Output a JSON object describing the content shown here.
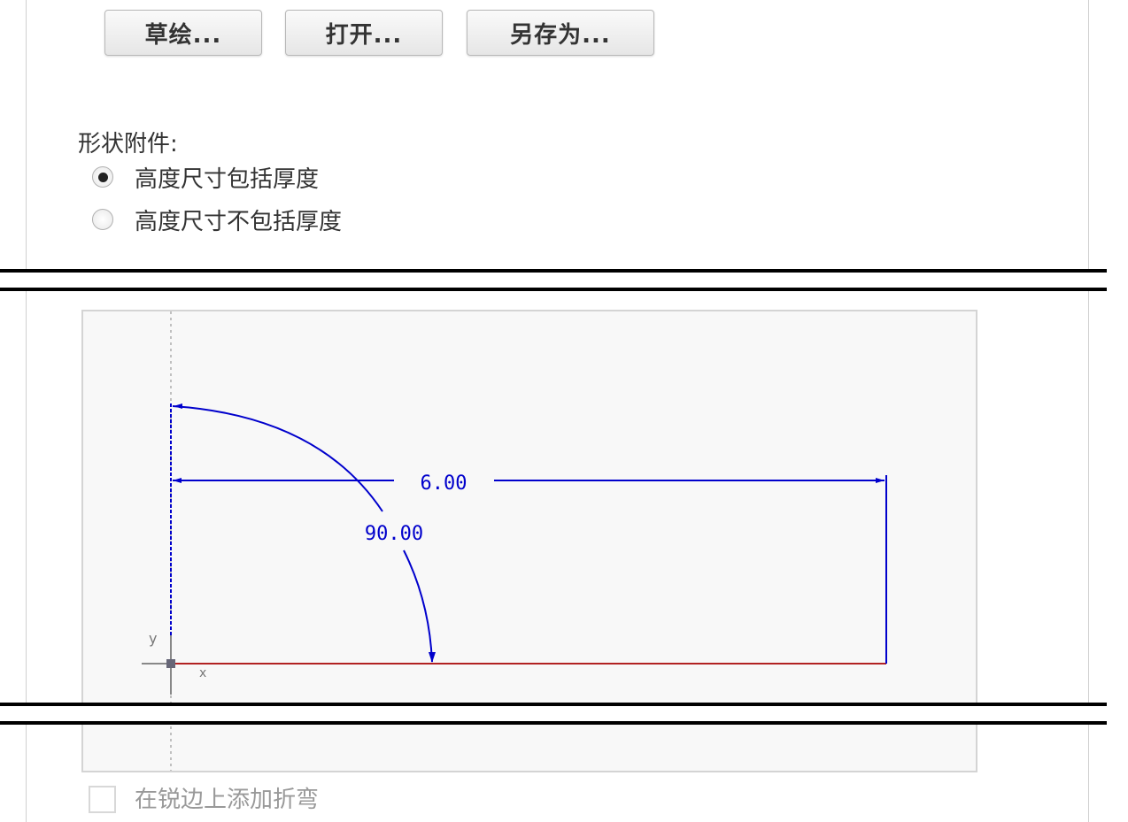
{
  "toolbar": {
    "sketch_label": "草绘...",
    "open_label": "打开...",
    "save_as_label": "另存为..."
  },
  "shape_attachment": {
    "label": "形状附件:",
    "options": [
      {
        "label": "高度尺寸包括厚度",
        "selected": true
      },
      {
        "label": "高度尺寸不包括厚度",
        "selected": false
      }
    ]
  },
  "sketch": {
    "length_dimension": "6.00",
    "angle_dimension": "90.00",
    "axis_y": "y",
    "axis_x": "x",
    "colors": {
      "dimension": "#0000cc",
      "edge": "#b22222",
      "axis": "#808080"
    }
  },
  "add_bend_on_sharp_edges": {
    "label": "在锐边上添加折弯",
    "checked": false
  }
}
